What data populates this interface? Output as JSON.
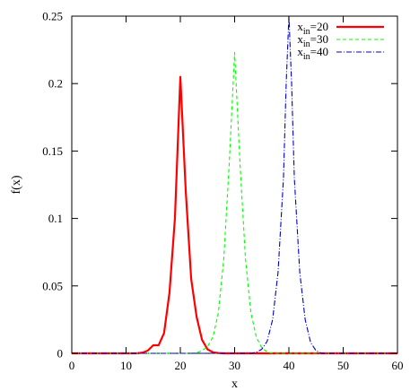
{
  "chart_data": {
    "type": "line",
    "title": "",
    "xlabel": "x",
    "ylabel": "f(x)",
    "xlim": [
      0,
      60
    ],
    "ylim": [
      0,
      0.25
    ],
    "xticks": [
      "0",
      "10",
      "20",
      "30",
      "40",
      "50",
      "60"
    ],
    "yticks": [
      "0",
      "0.05",
      "0.1",
      "0.15",
      "0.2",
      "0.25"
    ],
    "grid": false,
    "legend_position": "top-right",
    "series": [
      {
        "name": "x_in=20",
        "legend_sub": "in",
        "legend_rest": "=20",
        "color": "#ff0000",
        "dash": "solid",
        "x": [
          0,
          12,
          13,
          14,
          15,
          16,
          17,
          18,
          19,
          20,
          21,
          22,
          23,
          24,
          25,
          26,
          27,
          28,
          60
        ],
        "y": [
          0,
          0,
          0.0005,
          0.002,
          0.006,
          0.006,
          0.015,
          0.045,
          0.1,
          0.205,
          0.12,
          0.055,
          0.027,
          0.01,
          0.003,
          0.0008,
          0.0002,
          0,
          0
        ]
      },
      {
        "name": "x_in=30",
        "legend_sub": "in",
        "legend_rest": "=30",
        "color": "#00ff00",
        "dash": "dashed",
        "x": [
          0,
          22,
          23,
          24,
          25,
          26,
          27,
          28,
          29,
          30,
          31,
          32,
          33,
          34,
          35,
          36,
          37,
          60
        ],
        "y": [
          0,
          0,
          0.0005,
          0.002,
          0.005,
          0.012,
          0.03,
          0.07,
          0.14,
          0.223,
          0.14,
          0.07,
          0.03,
          0.012,
          0.004,
          0.001,
          0,
          0
        ]
      },
      {
        "name": "x_in=40",
        "legend_sub": "in",
        "legend_rest": "=40",
        "color": "#0000cc",
        "dash": "dashdot",
        "x": [
          0,
          33,
          34,
          35,
          36,
          37,
          38,
          39,
          39.5,
          40,
          40.5,
          41,
          42,
          43,
          44,
          45,
          46,
          60
        ],
        "y": [
          0,
          0,
          0.0008,
          0.003,
          0.009,
          0.025,
          0.06,
          0.13,
          0.2,
          0.25,
          0.2,
          0.13,
          0.06,
          0.025,
          0.008,
          0.002,
          0,
          0
        ]
      }
    ]
  }
}
